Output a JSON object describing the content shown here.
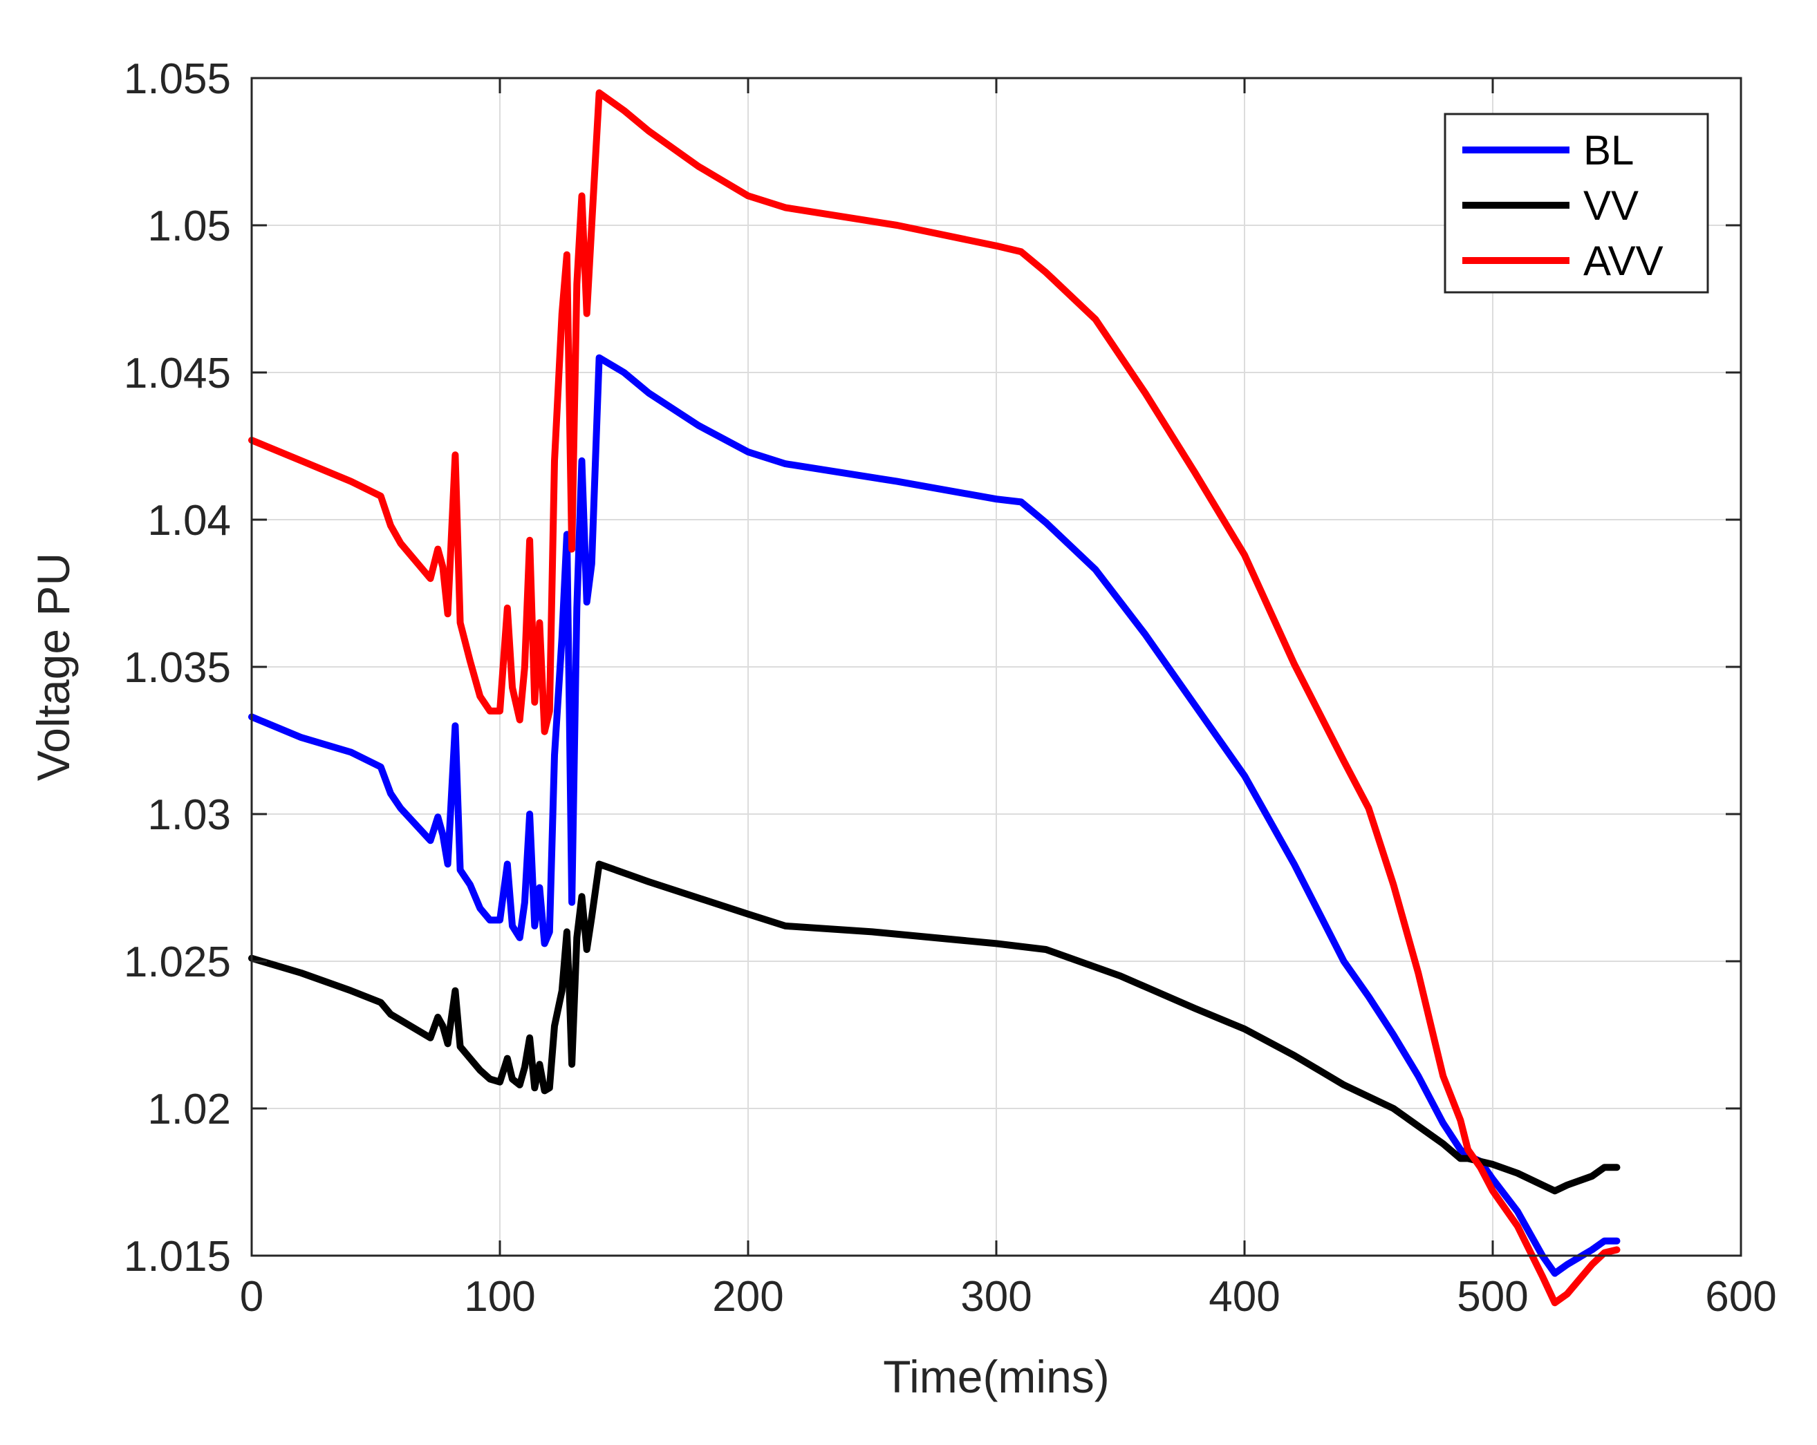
{
  "chart_data": {
    "type": "line",
    "title": "",
    "xlabel": "Time(mins)",
    "ylabel": "Voltage PU",
    "xlim": [
      0,
      600
    ],
    "ylim": [
      1.015,
      1.055
    ],
    "xticks": [
      0,
      100,
      200,
      300,
      400,
      500,
      600
    ],
    "xtick_labels": [
      "0",
      "100",
      "200",
      "300",
      "400",
      "500",
      "600"
    ],
    "yticks": [
      1.015,
      1.02,
      1.025,
      1.03,
      1.035,
      1.04,
      1.045,
      1.05,
      1.055
    ],
    "ytick_labels": [
      "1.015",
      "1.02",
      "1.025",
      "1.03",
      "1.035",
      "1.04",
      "1.045",
      "1.05",
      "1.055"
    ],
    "grid": true,
    "legend_position": "top-right",
    "series": [
      {
        "name": "BL",
        "color": "#0000ff",
        "x": [
          0,
          20,
          40,
          52,
          56,
          60,
          72,
          75,
          77,
          79,
          82,
          84,
          88,
          92,
          96,
          100,
          103,
          105,
          108,
          110,
          112,
          114,
          116,
          118,
          120,
          122,
          125,
          127,
          128,
          129,
          131,
          133,
          135,
          137,
          140,
          150,
          160,
          180,
          200,
          215,
          260,
          300,
          310,
          320,
          340,
          360,
          380,
          400,
          420,
          440,
          450,
          460,
          470,
          480,
          487,
          490,
          495,
          500,
          510,
          520,
          525,
          530,
          540,
          545,
          550
        ],
        "y": [
          1.0333,
          1.0326,
          1.0321,
          1.0316,
          1.0307,
          1.0302,
          1.0291,
          1.0299,
          1.0293,
          1.0283,
          1.033,
          1.0281,
          1.0276,
          1.0268,
          1.0264,
          1.0264,
          1.0283,
          1.0262,
          1.0258,
          1.027,
          1.03,
          1.0262,
          1.0275,
          1.0256,
          1.026,
          1.032,
          1.036,
          1.0395,
          1.0335,
          1.027,
          1.037,
          1.042,
          1.0372,
          1.0385,
          1.0455,
          1.045,
          1.0443,
          1.0432,
          1.0423,
          1.0419,
          1.0413,
          1.0407,
          1.0406,
          1.0399,
          1.0383,
          1.0361,
          1.0337,
          1.0313,
          1.0283,
          1.025,
          1.0238,
          1.0225,
          1.0211,
          1.0195,
          1.0186,
          1.0184,
          1.0182,
          1.0176,
          1.0165,
          1.015,
          1.0144,
          1.0147,
          1.0152,
          1.0155,
          1.0155
        ]
      },
      {
        "name": "VV",
        "color": "#000000",
        "x": [
          0,
          20,
          40,
          52,
          56,
          60,
          72,
          75,
          77,
          79,
          82,
          84,
          88,
          92,
          96,
          100,
          103,
          105,
          108,
          110,
          112,
          114,
          116,
          118,
          120,
          122,
          125,
          127,
          128,
          129,
          131,
          133,
          135,
          137,
          140,
          160,
          200,
          215,
          250,
          300,
          320,
          350,
          380,
          400,
          420,
          440,
          460,
          480,
          487,
          490,
          500,
          510,
          520,
          525,
          530,
          540,
          545,
          550
        ],
        "y": [
          1.0251,
          1.0246,
          1.024,
          1.0236,
          1.0232,
          1.023,
          1.0224,
          1.0231,
          1.0228,
          1.0222,
          1.024,
          1.0221,
          1.0217,
          1.0213,
          1.021,
          1.0209,
          1.0217,
          1.021,
          1.0208,
          1.0214,
          1.0224,
          1.0207,
          1.0215,
          1.0206,
          1.0207,
          1.0228,
          1.024,
          1.026,
          1.024,
          1.0215,
          1.0258,
          1.0272,
          1.0254,
          1.0265,
          1.0283,
          1.0277,
          1.0266,
          1.0262,
          1.026,
          1.0256,
          1.0254,
          1.0245,
          1.0234,
          1.0227,
          1.0218,
          1.0208,
          1.02,
          1.0188,
          1.0183,
          1.0183,
          1.0181,
          1.0178,
          1.0174,
          1.0172,
          1.0174,
          1.0177,
          1.018,
          1.018
        ]
      },
      {
        "name": "AVV",
        "color": "#ff0000",
        "x": [
          0,
          20,
          40,
          52,
          56,
          60,
          72,
          75,
          77,
          79,
          82,
          84,
          88,
          92,
          96,
          100,
          103,
          105,
          108,
          110,
          112,
          114,
          116,
          118,
          120,
          122,
          125,
          127,
          128,
          129,
          131,
          133,
          135,
          137,
          140,
          150,
          160,
          180,
          200,
          215,
          260,
          300,
          310,
          320,
          340,
          360,
          380,
          400,
          420,
          440,
          450,
          460,
          470,
          480,
          487,
          490,
          495,
          500,
          510,
          520,
          525,
          530,
          540,
          545,
          550
        ],
        "y": [
          1.0427,
          1.042,
          1.0413,
          1.0408,
          1.0398,
          1.0392,
          1.038,
          1.039,
          1.0384,
          1.0368,
          1.0422,
          1.0365,
          1.0352,
          1.034,
          1.0335,
          1.0335,
          1.037,
          1.0343,
          1.0332,
          1.035,
          1.0393,
          1.0338,
          1.0365,
          1.0328,
          1.0335,
          1.042,
          1.047,
          1.049,
          1.044,
          1.039,
          1.048,
          1.051,
          1.047,
          1.05,
          1.0545,
          1.0539,
          1.0532,
          1.052,
          1.051,
          1.0506,
          1.05,
          1.0493,
          1.0491,
          1.0484,
          1.0468,
          1.0443,
          1.0416,
          1.0388,
          1.0351,
          1.0318,
          1.0302,
          1.0276,
          1.0246,
          1.0211,
          1.0196,
          1.0186,
          1.018,
          1.0172,
          1.016,
          1.0143,
          1.0134,
          1.0137,
          1.0147,
          1.0151,
          1.0152
        ]
      }
    ]
  }
}
